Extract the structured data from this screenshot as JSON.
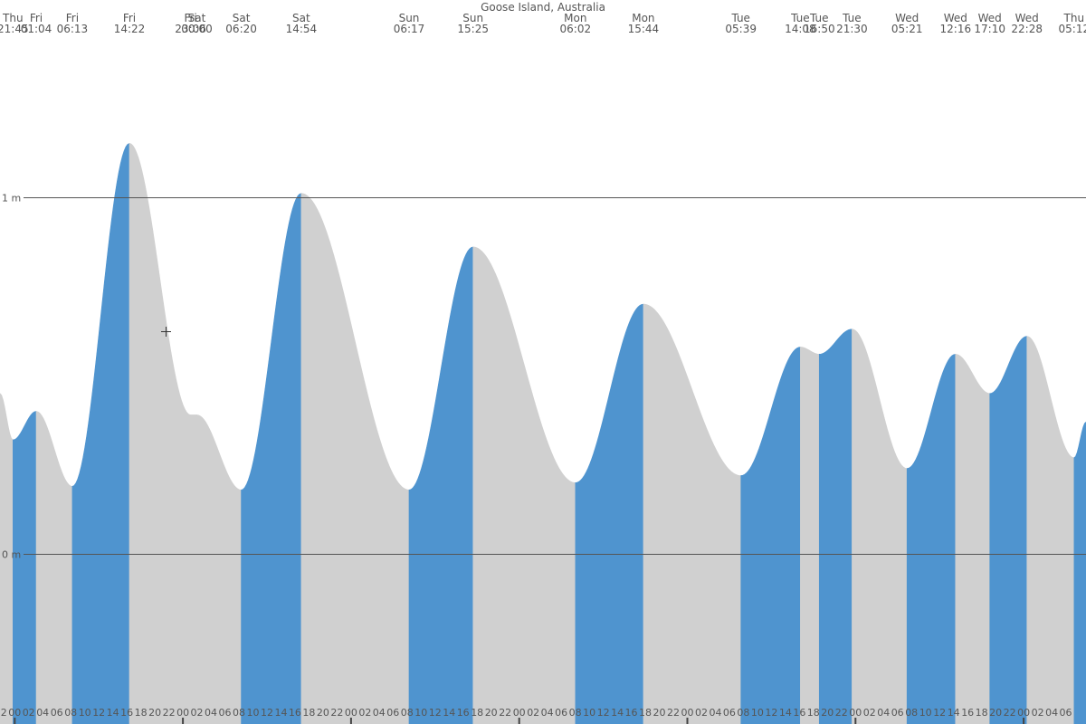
{
  "chart_data": {
    "type": "area",
    "title": "Goose Island, Australia",
    "y_axis": {
      "unit": "m",
      "reference_lines": [
        {
          "value": 1,
          "label": "1 m"
        },
        {
          "value": 0,
          "label": "0 m"
        }
      ],
      "ylim": [
        -0.45,
        1.45
      ]
    },
    "x_axis": {
      "unit": "hours",
      "range_hours": [
        -2.1,
        152.9
      ],
      "hour_ticks": [
        "20",
        "22",
        "00",
        "02",
        "04",
        "06",
        "08",
        "10",
        "12",
        "14",
        "16",
        "18",
        "20",
        "22",
        "00",
        "02",
        "04",
        "06",
        "08",
        "10",
        "12",
        "14",
        "16",
        "18",
        "20",
        "22",
        "00",
        "02",
        "04",
        "06",
        "08",
        "10",
        "12",
        "14",
        "16",
        "18",
        "20",
        "22",
        "00",
        "02",
        "04",
        "06",
        "08",
        "10",
        "12",
        "14",
        "16",
        "18",
        "20",
        "22",
        "00",
        "02",
        "04",
        "06",
        "08",
        "10",
        "12",
        "14",
        "16",
        "18",
        "20",
        "22",
        "00",
        "02",
        "04",
        "06",
        "08",
        "10",
        "12",
        "14",
        "16",
        "18",
        "20",
        "22",
        "00",
        "02",
        "04",
        "06"
      ]
    },
    "shading": {
      "rising_color": "#4f94cf",
      "falling_color": "#d0d0d0"
    },
    "events": [
      {
        "day": "Thu",
        "time": "21:45",
        "h": -0.25,
        "level": 0.32,
        "kind": "low"
      },
      {
        "day": "Fri",
        "time": "01:04",
        "h": 3.07,
        "level": 0.4,
        "kind": "high"
      },
      {
        "day": "Fri",
        "time": "06:13",
        "h": 8.22,
        "level": 0.19,
        "kind": "low"
      },
      {
        "day": "Fri",
        "time": "14:22",
        "h": 16.37,
        "level": 1.15,
        "kind": "high"
      },
      {
        "day": "Fri",
        "time": "23:06",
        "h": 25.1,
        "level": 0.39,
        "kind": "low"
      },
      {
        "day": "Sat",
        "time": "00:00",
        "h": 26.0,
        "level": 0.39,
        "kind": "high"
      },
      {
        "day": "Sat",
        "time": "06:20",
        "h": 32.33,
        "level": 0.18,
        "kind": "low"
      },
      {
        "day": "Sat",
        "time": "14:54",
        "h": 40.9,
        "level": 1.01,
        "kind": "high"
      },
      {
        "day": "Sun",
        "time": "06:17",
        "h": 56.28,
        "level": 0.18,
        "kind": "low"
      },
      {
        "day": "Sun",
        "time": "15:25",
        "h": 65.42,
        "level": 0.86,
        "kind": "high"
      },
      {
        "day": "Mon",
        "time": "06:02",
        "h": 80.03,
        "level": 0.2,
        "kind": "low"
      },
      {
        "day": "Mon",
        "time": "15:44",
        "h": 89.73,
        "level": 0.7,
        "kind": "high"
      },
      {
        "day": "Tue",
        "time": "05:39",
        "h": 103.65,
        "level": 0.22,
        "kind": "low"
      },
      {
        "day": "Tue",
        "time": "14:08",
        "h": 112.13,
        "level": 0.58,
        "kind": "high"
      },
      {
        "day": "Tue",
        "time": "16:50",
        "h": 114.83,
        "level": 0.56,
        "kind": "low"
      },
      {
        "day": "Tue",
        "time": "21:30",
        "h": 119.5,
        "level": 0.63,
        "kind": "high"
      },
      {
        "day": "Wed",
        "time": "05:21",
        "h": 127.35,
        "level": 0.24,
        "kind": "low"
      },
      {
        "day": "Wed",
        "time": "12:16",
        "h": 134.27,
        "level": 0.56,
        "kind": "high"
      },
      {
        "day": "Wed",
        "time": "17:10",
        "h": 139.17,
        "level": 0.45,
        "kind": "low"
      },
      {
        "day": "Wed",
        "time": "22:28",
        "h": 144.47,
        "level": 0.61,
        "kind": "high"
      },
      {
        "day": "Thu",
        "time": "05:12",
        "h": 151.2,
        "level": 0.27,
        "kind": "low"
      }
    ],
    "edge_levels": {
      "start": 0.45,
      "end": 0.37
    }
  }
}
